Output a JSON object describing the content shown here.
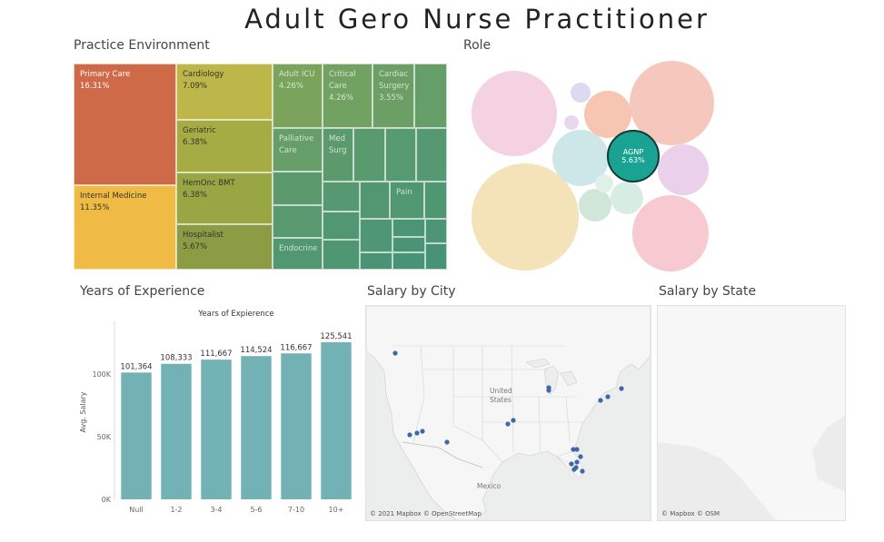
{
  "title": "Adult Gero Nurse Practitioner",
  "practice": {
    "title": "Practice Environment",
    "cells": [
      {
        "label": "Primary Care",
        "value": "16.31%",
        "color": "#cf6a49"
      },
      {
        "label": "Internal Medicine",
        "value": "11.35%",
        "color": "#f0bb45"
      },
      {
        "label": "Cardiology",
        "value": "7.09%",
        "color": "#bdb649"
      },
      {
        "label": "Geriatric",
        "value": "6.38%",
        "color": "#a6ac44"
      },
      {
        "label": "HemOnc BMT",
        "value": "6.38%",
        "color": "#98a643"
      },
      {
        "label": "Hospitalist",
        "value": "5.67%",
        "color": "#8c9c45"
      },
      {
        "label": "Adult ICU",
        "value": "4.26%",
        "color": "#7aa35b"
      },
      {
        "label": "Critical Care",
        "value": "4.26%",
        "color": "#72a262"
      },
      {
        "label": "Cardiac Surgery",
        "value": "3.55%",
        "color": "#6b9f66"
      },
      {
        "label": "Palliative Care",
        "value": "",
        "color": "#669e6a"
      },
      {
        "label": "Med Surg",
        "value": "",
        "color": "#5c9a6e"
      },
      {
        "label": "Pain",
        "value": "",
        "color": "#519772"
      },
      {
        "label": "Endocrine",
        "value": "",
        "color": "#519772"
      }
    ]
  },
  "role": {
    "title": "Role",
    "selected": {
      "label": "AGNP",
      "value": "5.63%",
      "color": "#1aa392"
    }
  },
  "experience": {
    "title": "Years of Experience",
    "chart_data": {
      "type": "bar",
      "title": "Years of Expierence",
      "ylabel": "Avg. Salary",
      "categories": [
        "Null",
        "1-2",
        "3-4",
        "5-6",
        "7-10",
        "10+"
      ],
      "values": [
        101364,
        108333,
        111667,
        114524,
        116667,
        125541
      ],
      "value_labels": [
        "101,364",
        "108,333",
        "111,667",
        "114,524",
        "116,667",
        "125,541"
      ],
      "ylim": [
        0,
        135000
      ],
      "yticks": [
        0,
        50000,
        100000
      ],
      "ytick_labels": [
        "0K",
        "50K",
        "100K"
      ],
      "color": "#72b2b5"
    }
  },
  "salary_city": {
    "title": "Salary by City",
    "label_us": "United\nStates",
    "label_mexico": "Mexico",
    "credit": "© 2021 Mapbox © OpenStreetMap",
    "point_color": "#3f68a8"
  },
  "salary_state": {
    "title": "Salary by State",
    "credit": "© Mapbox © OSM"
  }
}
